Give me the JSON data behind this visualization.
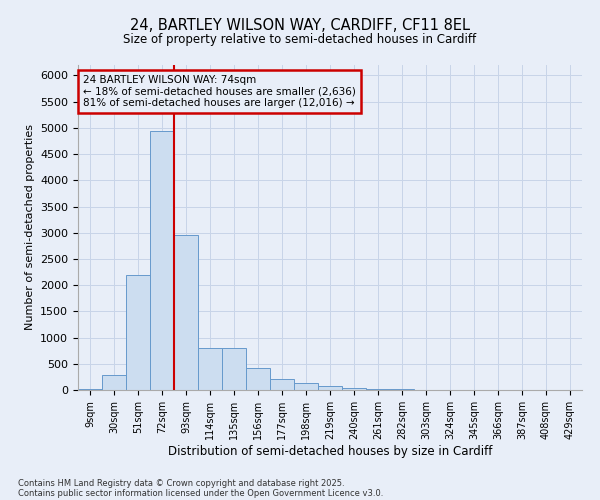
{
  "title_line1": "24, BARTLEY WILSON WAY, CARDIFF, CF11 8EL",
  "title_line2": "Size of property relative to semi-detached houses in Cardiff",
  "xlabel": "Distribution of semi-detached houses by size in Cardiff",
  "ylabel": "Number of semi-detached properties",
  "categories": [
    "9sqm",
    "30sqm",
    "51sqm",
    "72sqm",
    "93sqm",
    "114sqm",
    "135sqm",
    "156sqm",
    "177sqm",
    "198sqm",
    "219sqm",
    "240sqm",
    "261sqm",
    "282sqm",
    "303sqm",
    "324sqm",
    "345sqm",
    "366sqm",
    "387sqm",
    "408sqm",
    "429sqm"
  ],
  "values": [
    15,
    290,
    2200,
    4950,
    2950,
    800,
    800,
    420,
    210,
    130,
    70,
    30,
    20,
    10,
    5,
    2,
    1,
    0,
    0,
    0,
    0
  ],
  "bar_color": "#ccddf0",
  "bar_edge_color": "#6699cc",
  "grid_color": "#c8d4e8",
  "background_color": "#e8eef8",
  "vline_color": "#cc0000",
  "vline_position": 3.5,
  "annotation_text": "24 BARTLEY WILSON WAY: 74sqm\n← 18% of semi-detached houses are smaller (2,636)\n81% of semi-detached houses are larger (12,016) →",
  "annotation_box_color": "#cc0000",
  "footnote_line1": "Contains HM Land Registry data © Crown copyright and database right 2025.",
  "footnote_line2": "Contains public sector information licensed under the Open Government Licence v3.0.",
  "ylim": [
    0,
    6200
  ],
  "yticks": [
    0,
    500,
    1000,
    1500,
    2000,
    2500,
    3000,
    3500,
    4000,
    4500,
    5000,
    5500,
    6000
  ],
  "figsize": [
    6.0,
    5.0
  ],
  "dpi": 100
}
